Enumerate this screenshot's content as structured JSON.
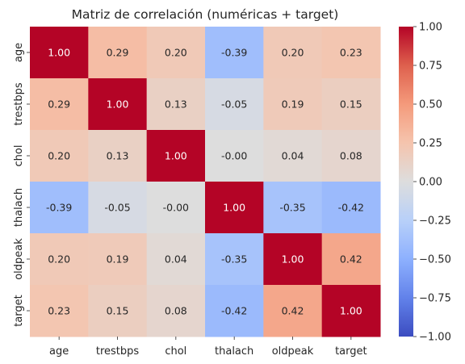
{
  "chart_data": {
    "type": "heatmap",
    "title": "Matriz de correlación (numéricas + target)",
    "xlabel": "",
    "ylabel": "",
    "x_labels": [
      "age",
      "trestbps",
      "chol",
      "thalach",
      "oldpeak",
      "target"
    ],
    "y_labels": [
      "age",
      "trestbps",
      "chol",
      "thalach",
      "oldpeak",
      "target"
    ],
    "values": [
      [
        1.0,
        0.29,
        0.2,
        -0.39,
        0.2,
        0.23
      ],
      [
        0.29,
        1.0,
        0.13,
        -0.05,
        0.19,
        0.15
      ],
      [
        0.2,
        0.13,
        1.0,
        -0.0,
        0.04,
        0.08
      ],
      [
        -0.39,
        -0.05,
        -0.0,
        1.0,
        -0.35,
        -0.42
      ],
      [
        0.2,
        0.19,
        0.04,
        -0.35,
        1.0,
        0.42
      ],
      [
        0.23,
        0.15,
        0.08,
        -0.42,
        0.42,
        1.0
      ]
    ],
    "value_format": "2 decimals",
    "colormap": "coolwarm",
    "vmin": -1.0,
    "vmax": 1.0,
    "colorbar_ticks": [
      1.0,
      0.75,
      0.5,
      0.25,
      0.0,
      -0.25,
      -0.5,
      -0.75,
      -1.0
    ],
    "colorbar_tick_labels": [
      "1.00",
      "0.75",
      "0.50",
      "0.25",
      "0.00",
      "−0.25",
      "−0.50",
      "−0.75",
      "−1.00"
    ],
    "colorbar_position": "right",
    "grid": false
  }
}
